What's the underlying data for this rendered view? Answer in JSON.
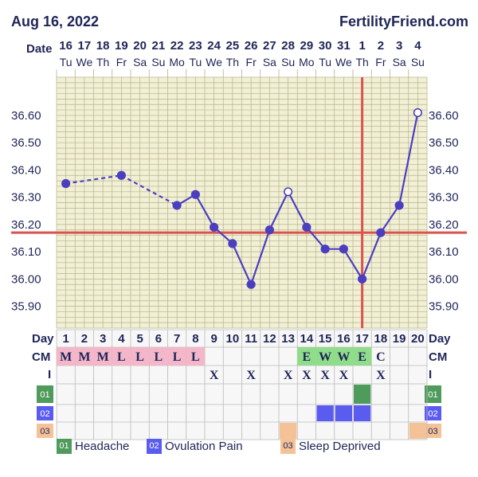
{
  "header": {
    "date": "Aug 16, 2022",
    "site": "FertilityFriend.com"
  },
  "labels": {
    "date_row": "Date",
    "day_row": "Day",
    "cm_row": "CM",
    "i_row": "I"
  },
  "chart_data": {
    "type": "line",
    "title": "",
    "dates": [
      "16",
      "17",
      "18",
      "19",
      "20",
      "21",
      "22",
      "23",
      "24",
      "25",
      "26",
      "27",
      "28",
      "29",
      "30",
      "31",
      "1",
      "2",
      "3",
      "4"
    ],
    "weekdays": [
      "Tu",
      "We",
      "Th",
      "Fr",
      "Sa",
      "Su",
      "Mo",
      "Tu",
      "We",
      "Th",
      "Fr",
      "Sa",
      "Su",
      "Mo",
      "Tu",
      "We",
      "Th",
      "Fr",
      "Sa",
      "Su"
    ],
    "cycle_days": [
      1,
      2,
      3,
      4,
      5,
      6,
      7,
      8,
      9,
      10,
      11,
      12,
      13,
      14,
      15,
      16,
      17,
      18,
      19,
      20
    ],
    "temperatures": [
      36.35,
      null,
      null,
      36.38,
      null,
      null,
      36.27,
      36.31,
      36.19,
      36.13,
      35.98,
      36.18,
      36.32,
      36.19,
      36.11,
      36.11,
      36.0,
      36.17,
      36.27,
      36.61
    ],
    "open_points": [
      13,
      20
    ],
    "dashed_segments": [
      [
        1,
        4
      ],
      [
        4,
        7
      ]
    ],
    "y_ticks": [
      "36.60",
      "36.50",
      "36.40",
      "36.30",
      "36.20",
      "36.10",
      "36.00",
      "35.90"
    ],
    "ylim": [
      35.82,
      36.74
    ],
    "coverline": 36.17,
    "ovulation_day": 17,
    "cm": [
      "M",
      "M",
      "M",
      "L",
      "L",
      "L",
      "L",
      "L",
      "",
      "",
      "",
      "",
      "",
      "E",
      "W",
      "W",
      "E",
      "C",
      "",
      ""
    ],
    "intercourse": [
      "",
      "",
      "",
      "",
      "",
      "",
      "",
      "",
      "X",
      "",
      "X",
      "",
      "X",
      "X",
      "X",
      "X",
      "",
      "X",
      "",
      ""
    ],
    "symptom_01_days": [
      17
    ],
    "symptom_02_days": [
      15,
      16,
      17
    ],
    "symptom_03_days": [
      13,
      20
    ],
    "colors": {
      "line": "#4b3fc0",
      "coverline": "#d9534f",
      "grid": "#b5b28e",
      "plot_bg": "#f2f0d4",
      "table_bg": "#f7f7f7",
      "cm_menstrual": "#f3b7c9",
      "cm_fertile": "#8fdc8a",
      "sym01": "#4f9b5b",
      "sym02": "#5a5cf0",
      "sym03": "#f4c296"
    }
  },
  "legend": {
    "items": [
      {
        "code": "01",
        "label": "Headache",
        "color": "#4f9b5b"
      },
      {
        "code": "02",
        "label": "Ovulation Pain",
        "color": "#5a5cf0"
      },
      {
        "code": "03",
        "label": "Sleep Deprived",
        "color": "#f4c296"
      }
    ]
  }
}
